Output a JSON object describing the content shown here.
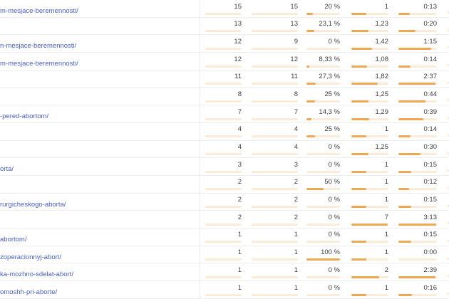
{
  "colors": {
    "link": "#4a5fc9",
    "value_text": "#3e3e3e",
    "bar_fill": "#f1a652",
    "bar_track": "#fcecd7",
    "row_border": "#eeeeee",
    "column_divider": "#e8e8e8"
  },
  "table": {
    "rows": [
      {
        "url": "m-mesjace-beremennosti/",
        "values": [
          "15",
          "15",
          "20 %",
          "1",
          "0:13"
        ],
        "bars": [
          0,
          0,
          20,
          40,
          30
        ]
      },
      {
        "url": "",
        "values": [
          "13",
          "13",
          "23,1 %",
          "1,23",
          "0:20"
        ],
        "bars": [
          0,
          0,
          23,
          46,
          45
        ]
      },
      {
        "url": "n-mesjace-beremennosti/",
        "values": [
          "12",
          "9",
          "0 %",
          "1,42",
          "1:15"
        ],
        "bars": [
          0,
          0,
          0,
          55,
          85
        ]
      },
      {
        "url": "m-mesjace-beremennosti/",
        "values": [
          "12",
          "12",
          "8,33 %",
          "1,08",
          "0:14"
        ],
        "bars": [
          0,
          0,
          8,
          43,
          32
        ]
      },
      {
        "url": "",
        "values": [
          "11",
          "11",
          "27,3 %",
          "1,82",
          "2:37"
        ],
        "bars": [
          0,
          0,
          27,
          72,
          96
        ]
      },
      {
        "url": "",
        "values": [
          "8",
          "8",
          "25 %",
          "1,25",
          "0:44"
        ],
        "bars": [
          0,
          0,
          25,
          47,
          70
        ]
      },
      {
        "url": "-pered-abortom/",
        "values": [
          "7",
          "7",
          "14,3 %",
          "1,29",
          "0:39"
        ],
        "bars": [
          0,
          0,
          14,
          48,
          65
        ]
      },
      {
        "url": "",
        "values": [
          "4",
          "4",
          "25 %",
          "1",
          "0:14"
        ],
        "bars": [
          0,
          0,
          25,
          40,
          32
        ]
      },
      {
        "url": "",
        "values": [
          "4",
          "4",
          "0 %",
          "1,25",
          "0:30"
        ],
        "bars": [
          0,
          0,
          0,
          47,
          58
        ]
      },
      {
        "url": "orta/",
        "values": [
          "3",
          "3",
          "0 %",
          "1",
          "0:15"
        ],
        "bars": [
          0,
          0,
          0,
          40,
          34
        ]
      },
      {
        "url": "",
        "values": [
          "2",
          "2",
          "50 %",
          "1",
          "0:12"
        ],
        "bars": [
          0,
          0,
          50,
          40,
          28
        ]
      },
      {
        "url": "rurgicheskogo-aborta/",
        "values": [
          "2",
          "2",
          "0 %",
          "1",
          "0:15"
        ],
        "bars": [
          0,
          0,
          0,
          40,
          34
        ]
      },
      {
        "url": "",
        "values": [
          "2",
          "2",
          "0 %",
          "7",
          "3:13"
        ],
        "bars": [
          0,
          0,
          0,
          98,
          98
        ]
      },
      {
        "url": "abortom/",
        "values": [
          "1",
          "1",
          "0 %",
          "1",
          "0:15"
        ],
        "bars": [
          0,
          0,
          0,
          40,
          34
        ]
      },
      {
        "url": "zoperacionnyj-abort/",
        "values": [
          "1",
          "1",
          "100 %",
          "1",
          "0:00"
        ],
        "bars": [
          0,
          0,
          100,
          40,
          0
        ]
      },
      {
        "url": "ka-mozhno-sdelat-abort/",
        "values": [
          "1",
          "1",
          "0 %",
          "2",
          "2:39"
        ],
        "bars": [
          0,
          0,
          0,
          75,
          96
        ]
      },
      {
        "url": "omoshh-pri-aborte/",
        "values": [
          "1",
          "1",
          "0 %",
          "1",
          "0:16"
        ],
        "bars": [
          0,
          0,
          0,
          40,
          36
        ]
      }
    ]
  }
}
